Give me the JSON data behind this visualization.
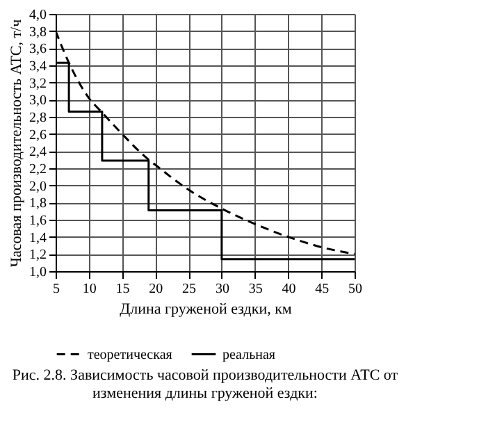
{
  "chart_data": {
    "type": "line",
    "xlabel": "Длина груженой ездки, км",
    "ylabel": "Часовая производительность АТС, т/ч",
    "annotations": [
      "Рис. 2.8. Зависимость часовой производительности АТС от изменения длины груженой ездки:"
    ],
    "xlim": [
      5,
      50
    ],
    "xticks": [
      5,
      10,
      15,
      20,
      25,
      30,
      35,
      40,
      45,
      50
    ],
    "ylim": [
      1.0,
      4.0
    ],
    "yticks": [
      {
        "value": 1.0,
        "label": "1,0"
      },
      {
        "value": 1.2,
        "label": "1,2"
      },
      {
        "value": 1.4,
        "label": "1,4"
      },
      {
        "value": 1.6,
        "label": "1,6"
      },
      {
        "value": 1.8,
        "label": "1,8"
      },
      {
        "value": 2.0,
        "label": "2,0"
      },
      {
        "value": 2.2,
        "label": "2,2"
      },
      {
        "value": 2.4,
        "label": "2,4"
      },
      {
        "value": 2.6,
        "label": "2,6"
      },
      {
        "value": 2.8,
        "label": "2,8"
      },
      {
        "value": 3.0,
        "label": "3,0"
      },
      {
        "value": 3.2,
        "label": "3,2"
      },
      {
        "value": 3.4,
        "label": "3,4"
      },
      {
        "value": 3.6,
        "label": "3,6"
      },
      {
        "value": 3.8,
        "label": "3,8"
      },
      {
        "value": 4.0,
        "label": "4,0"
      }
    ],
    "grid": true,
    "legend": "bottom",
    "series": [
      {
        "name": "теоретическая",
        "type": "line",
        "color": "#000000",
        "line_style": "dashed",
        "x": [
          5,
          7,
          10,
          12,
          15,
          19,
          20,
          25,
          30,
          35,
          40,
          45,
          50
        ],
        "values": [
          3.8,
          3.43,
          3.02,
          2.85,
          2.6,
          2.3,
          2.24,
          1.95,
          1.73,
          1.55,
          1.4,
          1.28,
          1.2
        ]
      },
      {
        "name": "реальная",
        "type": "step",
        "color": "#000000",
        "line_style": "solid",
        "x": [
          5,
          7,
          12,
          19,
          30,
          50
        ],
        "values": [
          3.43,
          2.86,
          2.29,
          1.71,
          1.14,
          1.14
        ]
      }
    ]
  }
}
